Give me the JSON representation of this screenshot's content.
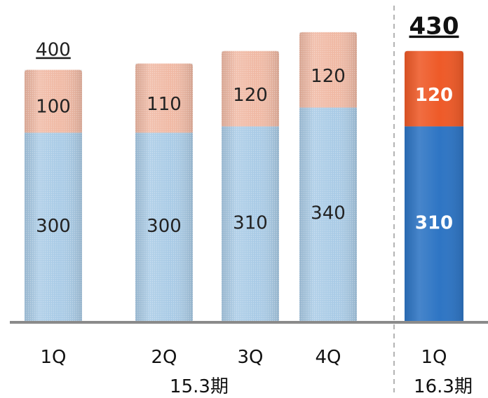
{
  "chart_data": {
    "type": "bar",
    "stacked": true,
    "categories": [
      "1Q",
      "2Q",
      "3Q",
      "4Q",
      "1Q"
    ],
    "groups": [
      {
        "label": "15.3期",
        "categories": [
          "1Q",
          "2Q",
          "3Q",
          "4Q"
        ]
      },
      {
        "label": "16.3期",
        "categories": [
          "1Q"
        ]
      }
    ],
    "series": [
      {
        "values": [
          300,
          300,
          310,
          340,
          310
        ]
      },
      {
        "values": [
          100,
          110,
          120,
          120,
          120
        ]
      }
    ],
    "totals": [
      "400",
      "",
      "",
      "",
      "430"
    ],
    "highlight_index": 4,
    "ylim": [
      0,
      450
    ],
    "grid": false,
    "colors": {
      "bottom": "#a9cbe6",
      "bottom_highlight": "#2e75c4",
      "top": "#f0b9a4",
      "top_highlight": "#ee5a28",
      "baseline": "#8a8a8a",
      "divider": "#9a9a9a"
    }
  }
}
